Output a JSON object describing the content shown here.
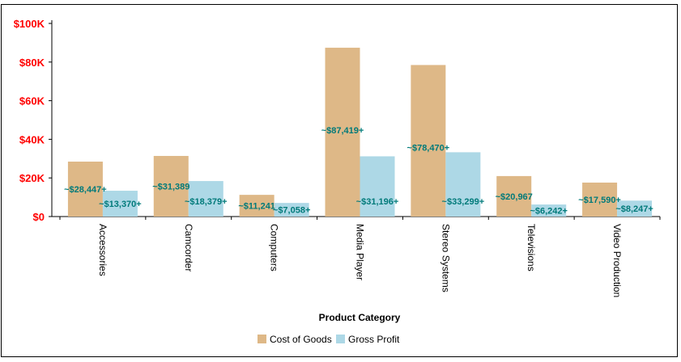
{
  "chart_data": {
    "type": "bar",
    "categories": [
      "Accessories",
      "Camcorder",
      "Computers",
      "Media Player",
      "Stereo Systems",
      "Televisions",
      "Video Production"
    ],
    "series": [
      {
        "name": "Cost of Goods",
        "values": [
          28447,
          31389,
          11241,
          87419,
          78470,
          20967,
          17590
        ],
        "labels": [
          "~$28,447+",
          "~$31,389",
          "~$11,241",
          "~$87,419+",
          "~$78,470+",
          "~$20,967",
          "~$17,590+"
        ],
        "color": "#deb887"
      },
      {
        "name": "Gross Profit",
        "values": [
          13370,
          18379,
          7058,
          31196,
          33299,
          6242,
          8247
        ],
        "labels": [
          "~$13,370+",
          "~$18,379+",
          "~$7,058+",
          "~$31,196+",
          "~$33,299+",
          "~$6,242+",
          "~$8,247+"
        ],
        "color": "#add8e6"
      }
    ],
    "xlabel": "Product Category",
    "ylabel": "",
    "ylim": [
      0,
      100000
    ],
    "yticks": [
      0,
      20000,
      40000,
      60000,
      80000,
      100000
    ],
    "ytick_labels": [
      "$0",
      "$20K",
      "$40K",
      "$60K",
      "$80K",
      "$100K"
    ],
    "ytick_color": "#ff0000",
    "label_color": "#007a7a",
    "legend_position": "bottom",
    "grid": false
  }
}
